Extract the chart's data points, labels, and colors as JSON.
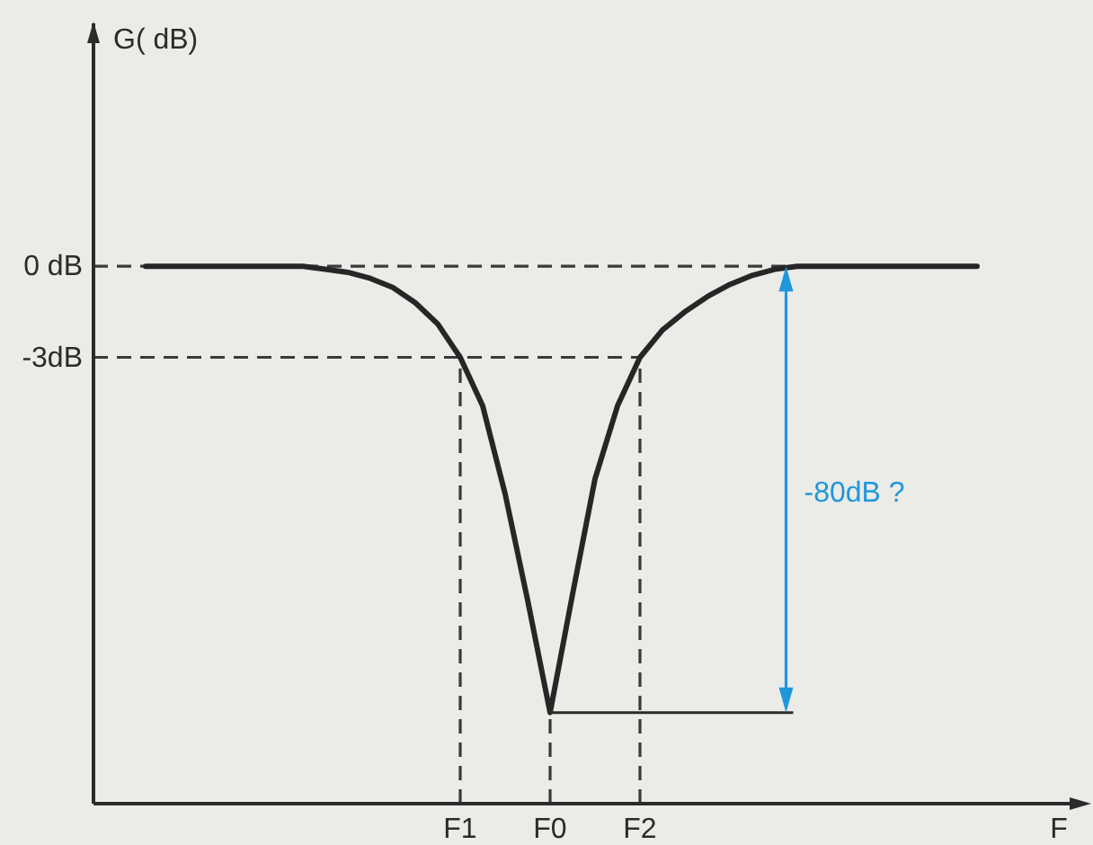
{
  "chart_data": {
    "type": "line",
    "xlabel": "F",
    "ylabel": "G( dB)",
    "categories": [
      null,
      null,
      null,
      null,
      null,
      null,
      null,
      null,
      null,
      null,
      null,
      null,
      null,
      null,
      "F1",
      null,
      null,
      null,
      "F0",
      null,
      null,
      null,
      "F2",
      null,
      null,
      null,
      null,
      null,
      null,
      null,
      null,
      null,
      null,
      null,
      null,
      null,
      null,
      null
    ],
    "series": [
      {
        "color": "#262626",
        "values": [
          0,
          0,
          0,
          0,
          0,
          0,
          0,
          0,
          -0.1,
          -0.2,
          -0.4,
          -0.7,
          -1.2,
          -1.9,
          -3.0,
          -4.6,
          -7.5,
          -11.0,
          -14.7,
          -10.8,
          -7.0,
          -4.6,
          -3.0,
          -2.1,
          -1.5,
          -1.0,
          -0.6,
          -0.3,
          -0.1,
          0,
          0,
          0,
          0,
          0,
          0,
          0,
          0,
          0
        ]
      }
    ],
    "ylim": [
      -17.7,
      8
    ],
    "yticks": [
      {
        "value": 0,
        "label": "0 dB"
      },
      {
        "value": -3,
        "label": "-3dB"
      }
    ],
    "ref_lines": [
      {
        "axis": "y",
        "value": 0,
        "line_style": "dashed"
      },
      {
        "axis": "y",
        "value": -3,
        "line_style": "dashed"
      },
      {
        "axis": "x",
        "value": "F1",
        "line_style": "dashed"
      },
      {
        "axis": "x",
        "value": "F0",
        "line_style": "dashed"
      },
      {
        "axis": "x",
        "value": "F2",
        "line_style": "dashed"
      }
    ],
    "annotations": [
      "-80dB ?"
    ]
  }
}
